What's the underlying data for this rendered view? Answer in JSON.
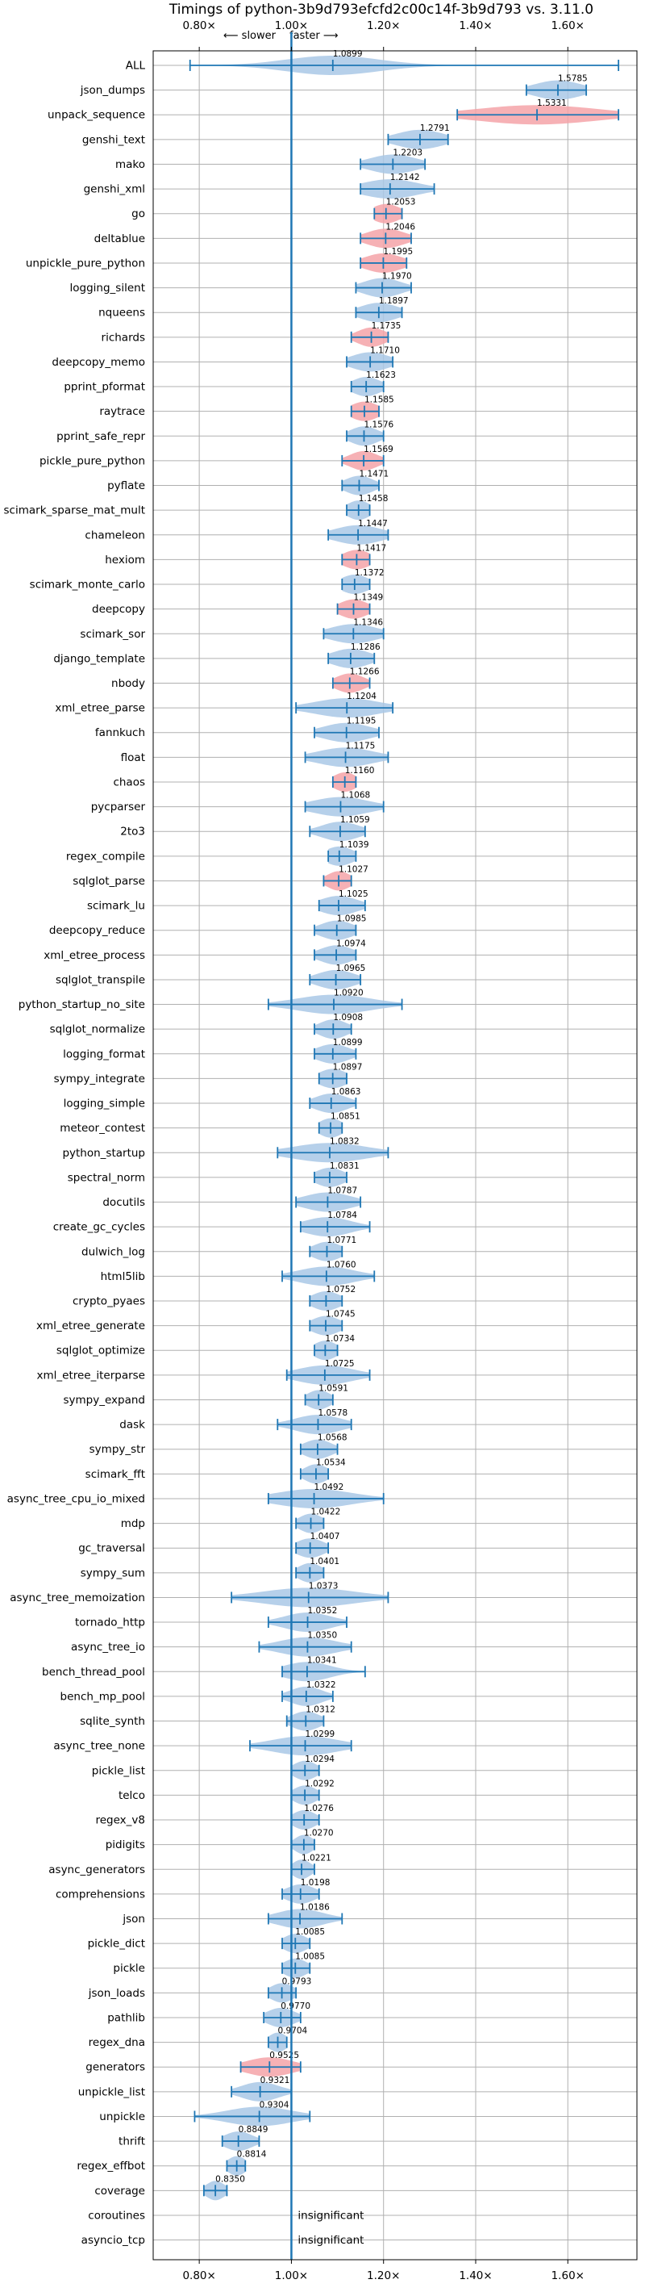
{
  "chart_data": {
    "type": "violin",
    "title": "Timings of python-3b9d793efcfd2c00c14f-3b9d793 vs. 3.11.0",
    "direction_labels": {
      "slower": "⟵ slower",
      "faster": "faster ⟶"
    },
    "xlim": [
      0.7,
      1.75
    ],
    "xticks": [
      0.8,
      1.0,
      1.2,
      1.4,
      1.6
    ],
    "xtick_labels": [
      "0.80×",
      "1.00×",
      "1.20×",
      "1.40×",
      "1.60×"
    ],
    "reference_line": 1.0,
    "grid": true,
    "colors": {
      "faster": "#a9c8e6",
      "slower": "#f4a3a8",
      "line": "#1f77b4",
      "grid": "#b0b0b0"
    },
    "insignificant_label": "insignificant",
    "benchmarks": [
      {
        "name": "ALL",
        "mean": 1.0899,
        "min": 0.78,
        "max": 1.71,
        "spread": 0.1,
        "color": "blue",
        "label": "1.0899"
      },
      {
        "name": "json_dumps",
        "mean": 1.5785,
        "min": 1.51,
        "max": 1.64,
        "spread": 0.05,
        "color": "blue",
        "label": "1.5785"
      },
      {
        "name": "unpack_sequence",
        "mean": 1.5331,
        "min": 1.36,
        "max": 1.71,
        "spread": 0.13,
        "color": "red",
        "label": "1.5331"
      },
      {
        "name": "genshi_text",
        "mean": 1.2791,
        "min": 1.21,
        "max": 1.34,
        "spread": 0.05,
        "color": "blue",
        "label": "1.2791"
      },
      {
        "name": "mako",
        "mean": 1.2203,
        "min": 1.15,
        "max": 1.29,
        "spread": 0.05,
        "color": "blue",
        "label": "1.2203"
      },
      {
        "name": "genshi_xml",
        "mean": 1.2142,
        "min": 1.15,
        "max": 1.31,
        "spread": 0.06,
        "color": "blue",
        "label": "1.2142"
      },
      {
        "name": "go",
        "mean": 1.2053,
        "min": 1.18,
        "max": 1.24,
        "spread": 0.03,
        "color": "red",
        "label": "1.2053"
      },
      {
        "name": "deltablue",
        "mean": 1.2046,
        "min": 1.15,
        "max": 1.26,
        "spread": 0.04,
        "color": "red",
        "label": "1.2046"
      },
      {
        "name": "unpickle_pure_python",
        "mean": 1.1995,
        "min": 1.15,
        "max": 1.25,
        "spread": 0.04,
        "color": "red",
        "label": "1.1995"
      },
      {
        "name": "logging_silent",
        "mean": 1.197,
        "min": 1.14,
        "max": 1.26,
        "spread": 0.04,
        "color": "blue",
        "label": "1.1970"
      },
      {
        "name": "nqueens",
        "mean": 1.1897,
        "min": 1.14,
        "max": 1.24,
        "spread": 0.04,
        "color": "blue",
        "label": "1.1897"
      },
      {
        "name": "richards",
        "mean": 1.1735,
        "min": 1.13,
        "max": 1.21,
        "spread": 0.03,
        "color": "red",
        "label": "1.1735"
      },
      {
        "name": "deepcopy_memo",
        "mean": 1.171,
        "min": 1.12,
        "max": 1.22,
        "spread": 0.04,
        "color": "blue",
        "label": "1.1710"
      },
      {
        "name": "pprint_pformat",
        "mean": 1.1623,
        "min": 1.13,
        "max": 1.2,
        "spread": 0.03,
        "color": "blue",
        "label": "1.1623"
      },
      {
        "name": "raytrace",
        "mean": 1.1585,
        "min": 1.13,
        "max": 1.19,
        "spread": 0.03,
        "color": "red",
        "label": "1.1585"
      },
      {
        "name": "pprint_safe_repr",
        "mean": 1.1576,
        "min": 1.12,
        "max": 1.2,
        "spread": 0.03,
        "color": "blue",
        "label": "1.1576"
      },
      {
        "name": "pickle_pure_python",
        "mean": 1.1569,
        "min": 1.11,
        "max": 1.2,
        "spread": 0.03,
        "color": "red",
        "label": "1.1569"
      },
      {
        "name": "pyflate",
        "mean": 1.1471,
        "min": 1.11,
        "max": 1.19,
        "spread": 0.03,
        "color": "blue",
        "label": "1.1471"
      },
      {
        "name": "scimark_sparse_mat_mult",
        "mean": 1.1458,
        "min": 1.12,
        "max": 1.17,
        "spread": 0.025,
        "color": "blue",
        "label": "1.1458"
      },
      {
        "name": "chameleon",
        "mean": 1.1447,
        "min": 1.08,
        "max": 1.21,
        "spread": 0.05,
        "color": "blue",
        "label": "1.1447"
      },
      {
        "name": "hexiom",
        "mean": 1.1417,
        "min": 1.11,
        "max": 1.17,
        "spread": 0.03,
        "color": "red",
        "label": "1.1417"
      },
      {
        "name": "scimark_monte_carlo",
        "mean": 1.1372,
        "min": 1.11,
        "max": 1.17,
        "spread": 0.03,
        "color": "blue",
        "label": "1.1372"
      },
      {
        "name": "deepcopy",
        "mean": 1.1349,
        "min": 1.1,
        "max": 1.17,
        "spread": 0.03,
        "color": "red",
        "label": "1.1349"
      },
      {
        "name": "scimark_sor",
        "mean": 1.1346,
        "min": 1.07,
        "max": 1.2,
        "spread": 0.05,
        "color": "blue",
        "label": "1.1346"
      },
      {
        "name": "django_template",
        "mean": 1.1286,
        "min": 1.08,
        "max": 1.18,
        "spread": 0.04,
        "color": "blue",
        "label": "1.1286"
      },
      {
        "name": "nbody",
        "mean": 1.1266,
        "min": 1.09,
        "max": 1.17,
        "spread": 0.03,
        "color": "red",
        "label": "1.1266"
      },
      {
        "name": "xml_etree_parse",
        "mean": 1.1204,
        "min": 1.01,
        "max": 1.22,
        "spread": 0.07,
        "color": "blue",
        "label": "1.1204"
      },
      {
        "name": "fannkuch",
        "mean": 1.1195,
        "min": 1.05,
        "max": 1.19,
        "spread": 0.05,
        "color": "blue",
        "label": "1.1195"
      },
      {
        "name": "float",
        "mean": 1.1175,
        "min": 1.03,
        "max": 1.21,
        "spread": 0.06,
        "color": "blue",
        "label": "1.1175"
      },
      {
        "name": "chaos",
        "mean": 1.116,
        "min": 1.09,
        "max": 1.14,
        "spread": 0.025,
        "color": "red",
        "label": "1.1160"
      },
      {
        "name": "pycparser",
        "mean": 1.1068,
        "min": 1.03,
        "max": 1.2,
        "spread": 0.06,
        "color": "blue",
        "label": "1.1068"
      },
      {
        "name": "2to3",
        "mean": 1.1059,
        "min": 1.04,
        "max": 1.16,
        "spread": 0.04,
        "color": "blue",
        "label": "1.1059"
      },
      {
        "name": "regex_compile",
        "mean": 1.1039,
        "min": 1.08,
        "max": 1.14,
        "spread": 0.03,
        "color": "blue",
        "label": "1.1039"
      },
      {
        "name": "sqlglot_parse",
        "mean": 1.1027,
        "min": 1.07,
        "max": 1.13,
        "spread": 0.025,
        "color": "red",
        "label": "1.1027"
      },
      {
        "name": "scimark_lu",
        "mean": 1.1025,
        "min": 1.06,
        "max": 1.16,
        "spread": 0.04,
        "color": "blue",
        "label": "1.1025"
      },
      {
        "name": "deepcopy_reduce",
        "mean": 1.0985,
        "min": 1.05,
        "max": 1.14,
        "spread": 0.035,
        "color": "blue",
        "label": "1.0985"
      },
      {
        "name": "xml_etree_process",
        "mean": 1.0974,
        "min": 1.05,
        "max": 1.14,
        "spread": 0.035,
        "color": "blue",
        "label": "1.0974"
      },
      {
        "name": "sqlglot_transpile",
        "mean": 1.0965,
        "min": 1.04,
        "max": 1.15,
        "spread": 0.04,
        "color": "blue",
        "label": "1.0965"
      },
      {
        "name": "python_startup_no_site",
        "mean": 1.092,
        "min": 0.95,
        "max": 1.24,
        "spread": 0.08,
        "color": "blue",
        "label": "1.0920"
      },
      {
        "name": "sqlglot_normalize",
        "mean": 1.0908,
        "min": 1.05,
        "max": 1.13,
        "spread": 0.03,
        "color": "blue",
        "label": "1.0908"
      },
      {
        "name": "logging_format",
        "mean": 1.0899,
        "min": 1.05,
        "max": 1.14,
        "spread": 0.035,
        "color": "blue",
        "label": "1.0899"
      },
      {
        "name": "sympy_integrate",
        "mean": 1.0897,
        "min": 1.06,
        "max": 1.12,
        "spread": 0.03,
        "color": "blue",
        "label": "1.0897"
      },
      {
        "name": "logging_simple",
        "mean": 1.0863,
        "min": 1.04,
        "max": 1.14,
        "spread": 0.035,
        "color": "blue",
        "label": "1.0863"
      },
      {
        "name": "meteor_contest",
        "mean": 1.0851,
        "min": 1.06,
        "max": 1.11,
        "spread": 0.025,
        "color": "blue",
        "label": "1.0851"
      },
      {
        "name": "python_startup",
        "mean": 1.0832,
        "min": 0.97,
        "max": 1.21,
        "spread": 0.08,
        "color": "blue",
        "label": "1.0832"
      },
      {
        "name": "spectral_norm",
        "mean": 1.0831,
        "min": 1.05,
        "max": 1.12,
        "spread": 0.03,
        "color": "blue",
        "label": "1.0831"
      },
      {
        "name": "docutils",
        "mean": 1.0787,
        "min": 1.01,
        "max": 1.15,
        "spread": 0.05,
        "color": "blue",
        "label": "1.0787"
      },
      {
        "name": "create_gc_cycles",
        "mean": 1.0784,
        "min": 1.02,
        "max": 1.17,
        "spread": 0.05,
        "color": "blue",
        "label": "1.0784"
      },
      {
        "name": "dulwich_log",
        "mean": 1.0771,
        "min": 1.04,
        "max": 1.11,
        "spread": 0.03,
        "color": "blue",
        "label": "1.0771"
      },
      {
        "name": "html5lib",
        "mean": 1.076,
        "min": 0.98,
        "max": 1.18,
        "spread": 0.06,
        "color": "blue",
        "label": "1.0760"
      },
      {
        "name": "crypto_pyaes",
        "mean": 1.0752,
        "min": 1.04,
        "max": 1.11,
        "spread": 0.03,
        "color": "blue",
        "label": "1.0752"
      },
      {
        "name": "xml_etree_generate",
        "mean": 1.0745,
        "min": 1.04,
        "max": 1.11,
        "spread": 0.03,
        "color": "blue",
        "label": "1.0745"
      },
      {
        "name": "sqlglot_optimize",
        "mean": 1.0734,
        "min": 1.05,
        "max": 1.1,
        "spread": 0.025,
        "color": "blue",
        "label": "1.0734"
      },
      {
        "name": "xml_etree_iterparse",
        "mean": 1.0725,
        "min": 0.99,
        "max": 1.17,
        "spread": 0.06,
        "color": "blue",
        "label": "1.0725"
      },
      {
        "name": "sympy_expand",
        "mean": 1.0591,
        "min": 1.03,
        "max": 1.09,
        "spread": 0.025,
        "color": "blue",
        "label": "1.0591"
      },
      {
        "name": "dask",
        "mean": 1.0578,
        "min": 0.97,
        "max": 1.13,
        "spread": 0.05,
        "color": "blue",
        "label": "1.0578"
      },
      {
        "name": "sympy_str",
        "mean": 1.0568,
        "min": 1.02,
        "max": 1.1,
        "spread": 0.03,
        "color": "blue",
        "label": "1.0568"
      },
      {
        "name": "scimark_fft",
        "mean": 1.0534,
        "min": 1.02,
        "max": 1.08,
        "spread": 0.025,
        "color": "blue",
        "label": "1.0534"
      },
      {
        "name": "async_tree_cpu_io_mixed",
        "mean": 1.0492,
        "min": 0.95,
        "max": 1.2,
        "spread": 0.08,
        "color": "blue",
        "label": "1.0492"
      },
      {
        "name": "mdp",
        "mean": 1.0422,
        "min": 1.01,
        "max": 1.07,
        "spread": 0.025,
        "color": "blue",
        "label": "1.0422"
      },
      {
        "name": "gc_traversal",
        "mean": 1.0407,
        "min": 1.01,
        "max": 1.08,
        "spread": 0.03,
        "color": "blue",
        "label": "1.0407"
      },
      {
        "name": "sympy_sum",
        "mean": 1.0401,
        "min": 1.01,
        "max": 1.07,
        "spread": 0.025,
        "color": "blue",
        "label": "1.0401"
      },
      {
        "name": "async_tree_memoization",
        "mean": 1.0373,
        "min": 0.87,
        "max": 1.21,
        "spread": 0.1,
        "color": "blue",
        "label": "1.0373"
      },
      {
        "name": "tornado_http",
        "mean": 1.0352,
        "min": 0.95,
        "max": 1.12,
        "spread": 0.05,
        "color": "blue",
        "label": "1.0352"
      },
      {
        "name": "async_tree_io",
        "mean": 1.035,
        "min": 0.93,
        "max": 1.13,
        "spread": 0.06,
        "color": "blue",
        "label": "1.0350"
      },
      {
        "name": "bench_thread_pool",
        "mean": 1.0341,
        "min": 0.98,
        "max": 1.16,
        "spread": 0.05,
        "color": "blue",
        "label": "1.0341"
      },
      {
        "name": "bench_mp_pool",
        "mean": 1.0322,
        "min": 0.98,
        "max": 1.09,
        "spread": 0.035,
        "color": "blue",
        "label": "1.0322"
      },
      {
        "name": "sqlite_synth",
        "mean": 1.0312,
        "min": 0.99,
        "max": 1.07,
        "spread": 0.03,
        "color": "blue",
        "label": "1.0312"
      },
      {
        "name": "async_tree_none",
        "mean": 1.0299,
        "min": 0.91,
        "max": 1.13,
        "spread": 0.07,
        "color": "blue",
        "label": "1.0299"
      },
      {
        "name": "pickle_list",
        "mean": 1.0294,
        "min": 1.0,
        "max": 1.06,
        "spread": 0.025,
        "color": "blue",
        "label": "1.0294"
      },
      {
        "name": "telco",
        "mean": 1.0292,
        "min": 1.0,
        "max": 1.06,
        "spread": 0.025,
        "color": "blue",
        "label": "1.0292"
      },
      {
        "name": "regex_v8",
        "mean": 1.0276,
        "min": 1.0,
        "max": 1.06,
        "spread": 0.025,
        "color": "blue",
        "label": "1.0276"
      },
      {
        "name": "pidigits",
        "mean": 1.027,
        "min": 1.0,
        "max": 1.05,
        "spread": 0.02,
        "color": "blue",
        "label": "1.0270"
      },
      {
        "name": "async_generators",
        "mean": 1.0221,
        "min": 1.0,
        "max": 1.05,
        "spread": 0.02,
        "color": "blue",
        "label": "1.0221"
      },
      {
        "name": "comprehensions",
        "mean": 1.0198,
        "min": 0.98,
        "max": 1.06,
        "spread": 0.03,
        "color": "blue",
        "label": "1.0198"
      },
      {
        "name": "json",
        "mean": 1.0186,
        "min": 0.95,
        "max": 1.11,
        "spread": 0.05,
        "color": "blue",
        "label": "1.0186"
      },
      {
        "name": "pickle_dict",
        "mean": 1.0085,
        "min": 0.98,
        "max": 1.04,
        "spread": 0.025,
        "color": "blue",
        "label": "1.0085"
      },
      {
        "name": "pickle",
        "mean": 1.0085,
        "min": 0.98,
        "max": 1.04,
        "spread": 0.025,
        "color": "blue",
        "label": "1.0085"
      },
      {
        "name": "json_loads",
        "mean": 0.9793,
        "min": 0.95,
        "max": 1.01,
        "spread": 0.025,
        "color": "blue",
        "label": "0.9793"
      },
      {
        "name": "pathlib",
        "mean": 0.977,
        "min": 0.94,
        "max": 1.02,
        "spread": 0.03,
        "color": "blue",
        "label": "0.9770"
      },
      {
        "name": "regex_dna",
        "mean": 0.9704,
        "min": 0.95,
        "max": 0.99,
        "spread": 0.02,
        "color": "blue",
        "label": "0.9704"
      },
      {
        "name": "generators",
        "mean": 0.9525,
        "min": 0.89,
        "max": 1.02,
        "spread": 0.05,
        "color": "red",
        "label": "0.9525"
      },
      {
        "name": "unpickle_list",
        "mean": 0.9321,
        "min": 0.87,
        "max": 1.0,
        "spread": 0.04,
        "color": "blue",
        "label": "0.9321"
      },
      {
        "name": "unpickle",
        "mean": 0.9304,
        "min": 0.79,
        "max": 1.04,
        "spread": 0.07,
        "color": "blue",
        "label": "0.9304"
      },
      {
        "name": "thrift",
        "mean": 0.8849,
        "min": 0.85,
        "max": 0.93,
        "spread": 0.03,
        "color": "blue",
        "label": "0.8849"
      },
      {
        "name": "regex_effbot",
        "mean": 0.8814,
        "min": 0.86,
        "max": 0.9,
        "spread": 0.02,
        "color": "blue",
        "label": "0.8814"
      },
      {
        "name": "coverage",
        "mean": 0.835,
        "min": 0.81,
        "max": 0.86,
        "spread": 0.02,
        "color": "blue",
        "label": "0.8350"
      },
      {
        "name": "coroutines",
        "mean": null,
        "insignificant": true
      },
      {
        "name": "asyncio_tcp",
        "mean": null,
        "insignificant": true
      }
    ]
  }
}
